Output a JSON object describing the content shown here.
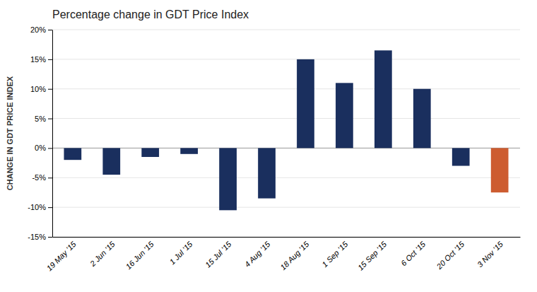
{
  "chart_data": {
    "type": "bar",
    "title": "Percentage change in GDT Price Index",
    "ylabel": "CHANGE IN GDT PRICE INDEX",
    "categories": [
      "19 May '15",
      "2 Jun '15",
      "16 Jun '15",
      "1 Jul '15",
      "15 Jul '15",
      "4 Aug '15",
      "18 Aug '15",
      "1 Sep '15",
      "15 Sep '15",
      "6 Oct '15",
      "20 Oct '15",
      "3 Nov '15"
    ],
    "values": [
      -2.0,
      -4.5,
      -1.5,
      -1.0,
      -10.5,
      -8.5,
      15.0,
      11.0,
      16.5,
      10.0,
      -3.0,
      -7.5
    ],
    "colors": [
      "#1a2f5e",
      "#1a2f5e",
      "#1a2f5e",
      "#1a2f5e",
      "#1a2f5e",
      "#1a2f5e",
      "#1a2f5e",
      "#1a2f5e",
      "#1a2f5e",
      "#1a2f5e",
      "#1a2f5e",
      "#cd5c30"
    ],
    "ylim": [
      -15,
      20
    ],
    "yticks": [
      {
        "value": -15,
        "label": "-15%"
      },
      {
        "value": -10,
        "label": "-10%"
      },
      {
        "value": -5,
        "label": "-5%"
      },
      {
        "value": 0,
        "label": "0%"
      },
      {
        "value": 5,
        "label": "5%"
      },
      {
        "value": 10,
        "label": "10%"
      },
      {
        "value": 15,
        "label": "15%"
      },
      {
        "value": 20,
        "label": "20%"
      }
    ],
    "grid": true
  }
}
